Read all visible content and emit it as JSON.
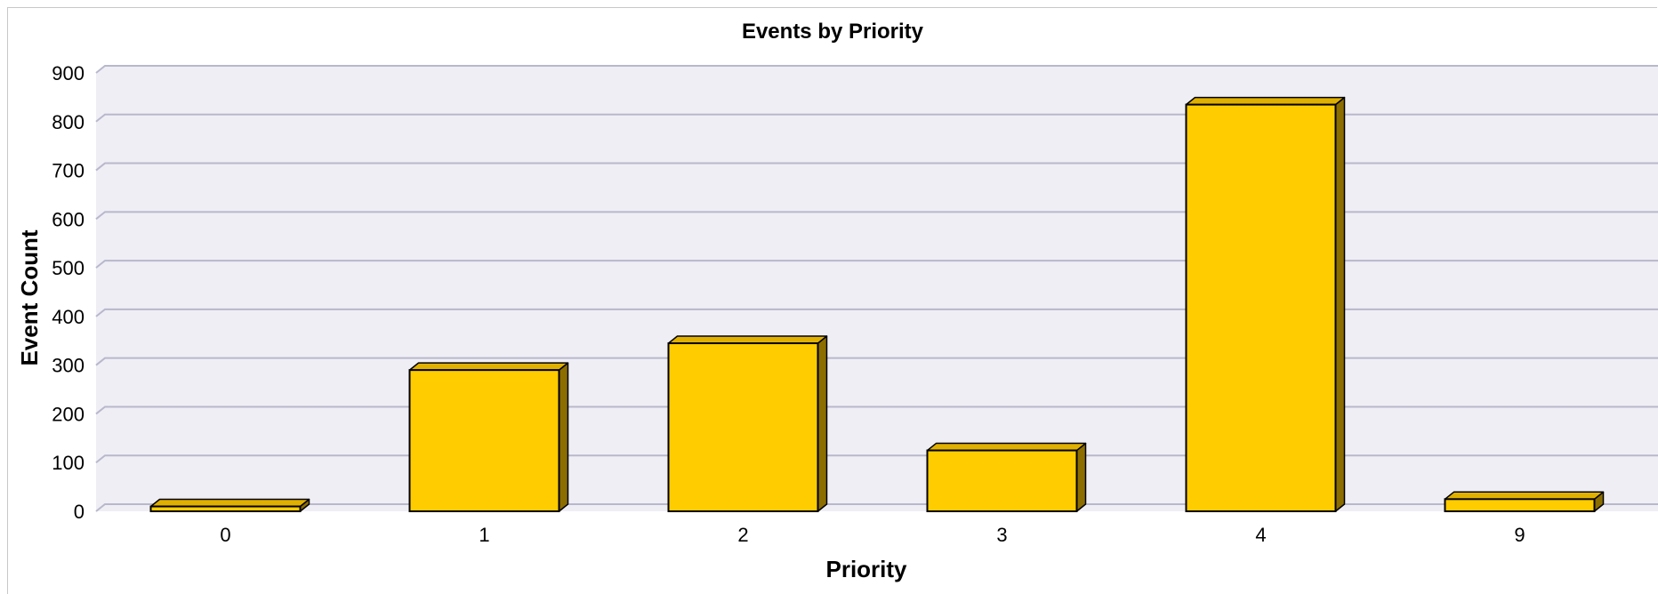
{
  "chart_data": {
    "type": "bar",
    "title": "Events by Priority",
    "xlabel": "Priority",
    "ylabel": "Event Count",
    "categories": [
      "0",
      "1",
      "2",
      "3",
      "4",
      "9"
    ],
    "values": [
      10,
      290,
      345,
      125,
      835,
      25
    ],
    "ylim": [
      0,
      900
    ],
    "yticks": [
      0,
      100,
      200,
      300,
      400,
      500,
      600,
      700,
      800,
      900
    ],
    "grid": true,
    "legend": "none",
    "colors": {
      "bar_front": "#ffcc00",
      "bar_top": "#e0b000",
      "bar_side": "#8c6d00",
      "plot_background": "#efeef5",
      "gridline": "#b8b8cc"
    }
  }
}
